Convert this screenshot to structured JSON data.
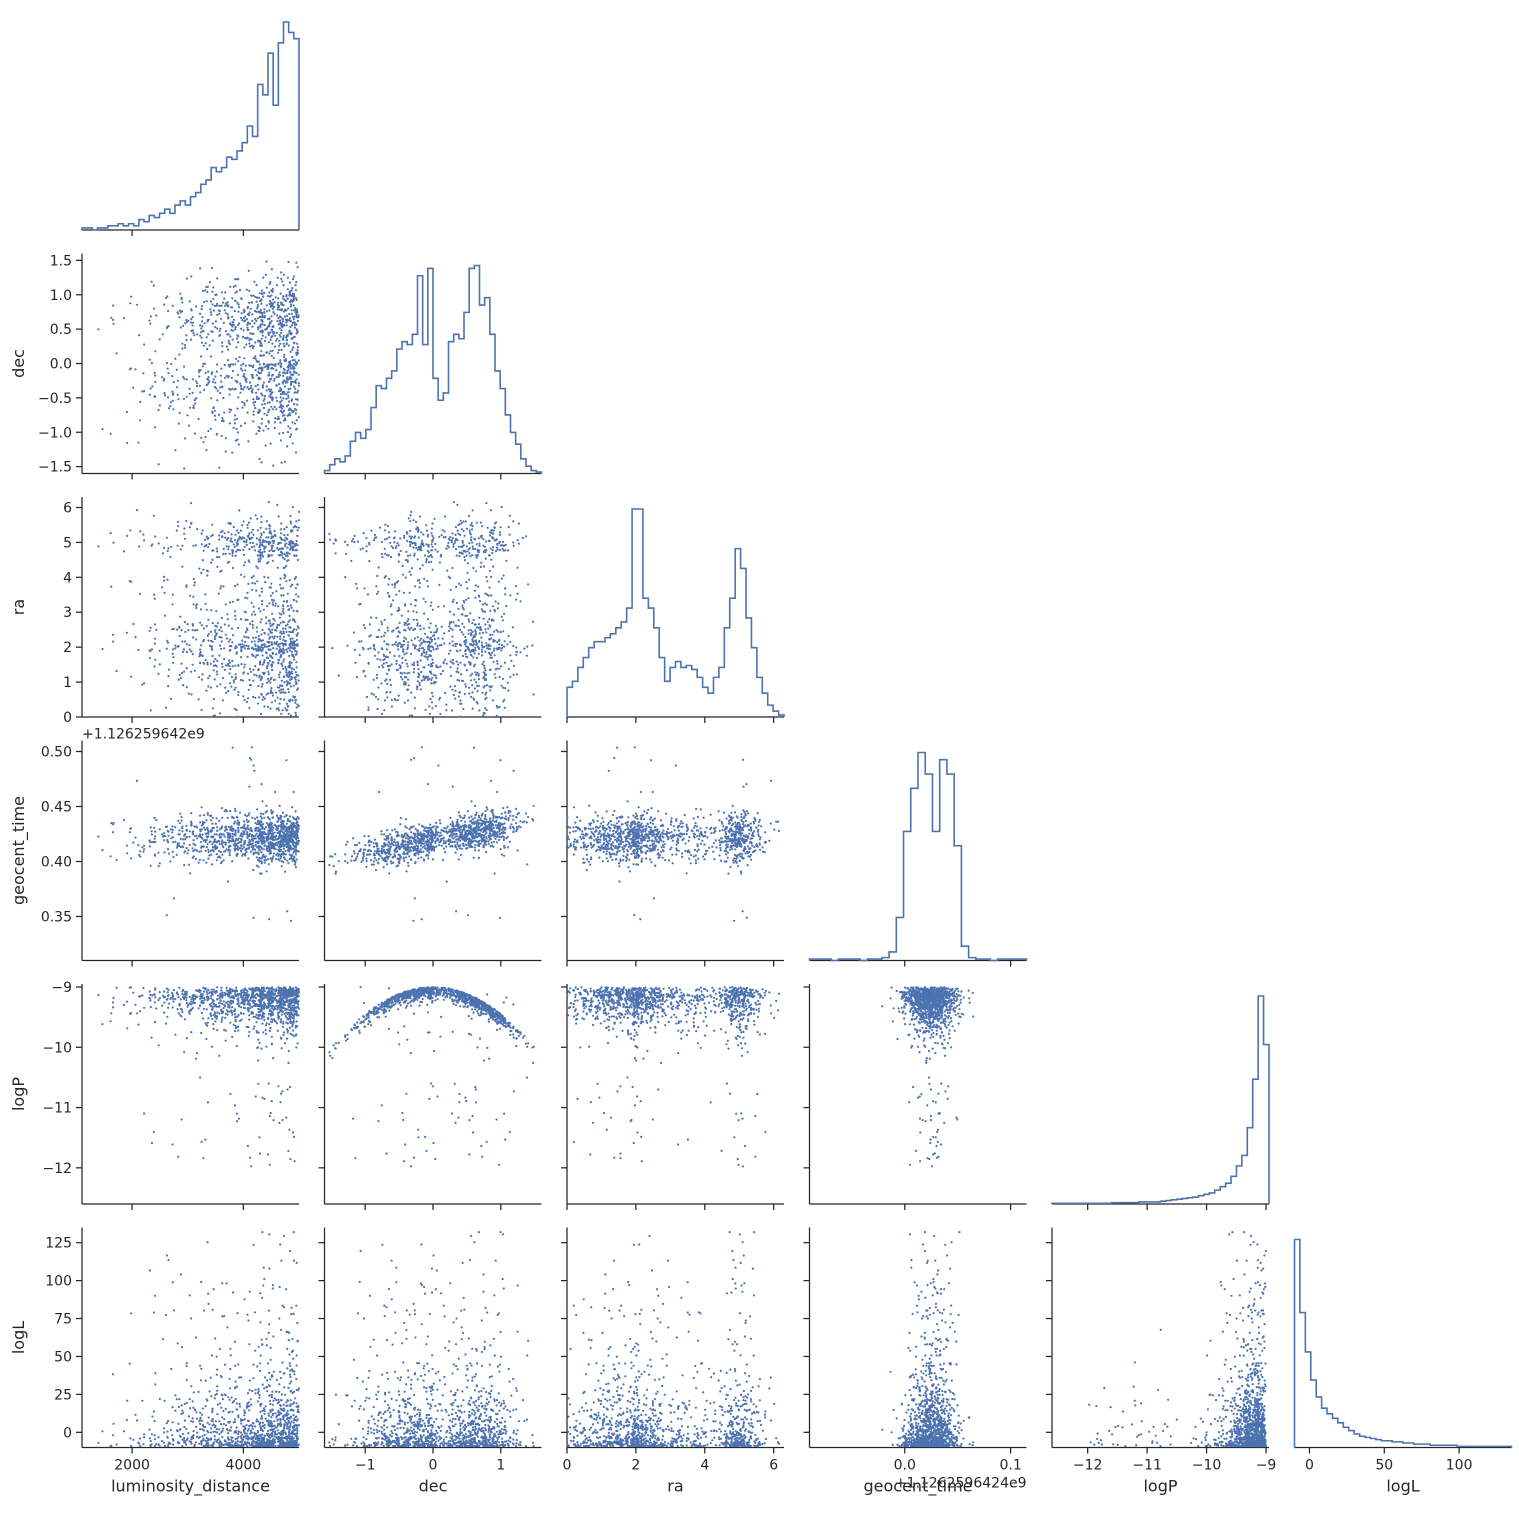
{
  "chart_data": {
    "type": "scatter",
    "layout": "corner-pairplot",
    "variables": [
      "luminosity_distance",
      "dec",
      "ra",
      "geocent_time",
      "logP",
      "logL"
    ],
    "axis_labels": [
      "luminosity_distance",
      "dec",
      "ra",
      "geocent_time",
      "logP",
      "logL"
    ],
    "marker_color": "#4c72b0",
    "grid": false,
    "geocent_time_offset_label": "+1.126259642e9",
    "geocent_time_x_offset_label": "+1.1262596424e9",
    "x_ticks": {
      "luminosity_distance": [
        "2000",
        "4000"
      ],
      "dec": [
        "−1",
        "0",
        "1"
      ],
      "ra": [
        "0",
        "2",
        "4",
        "6"
      ],
      "geocent_time": [
        "0.0",
        "0.1"
      ],
      "logP": [
        "−12",
        "−11",
        "−10",
        "−9"
      ],
      "logL": [
        "0",
        "50",
        "100"
      ]
    },
    "y_ticks": {
      "dec": [
        "1.5",
        "1.0",
        "0.5",
        "0.0",
        "−0.5",
        "−1.0",
        "−1.5"
      ],
      "ra": [
        "6",
        "5",
        "4",
        "3",
        "2",
        "1",
        "0"
      ],
      "geocent_time": [
        "0.50",
        "0.45",
        "0.40",
        "0.35"
      ],
      "logP": [
        "−9",
        "−10",
        "−11",
        "−12"
      ],
      "logL": [
        "125",
        "100",
        "75",
        "50",
        "25",
        "0"
      ]
    },
    "ranges": {
      "luminosity_distance": [
        1100,
        5000
      ],
      "dec": [
        -1.6,
        1.6
      ],
      "ra": [
        0,
        6.3
      ],
      "geocent_time": [
        0.31,
        0.51
      ],
      "logP": [
        -12.6,
        -8.95
      ],
      "logL": [
        -10,
        135
      ]
    },
    "geocent_time_x_range": [
      -0.09,
      0.115
    ],
    "histograms": {
      "luminosity_distance": {
        "bins": [
          1100,
          5000
        ],
        "counts": [
          1,
          1,
          0,
          1,
          1,
          2,
          2,
          3,
          2,
          3,
          2,
          5,
          4,
          7,
          6,
          8,
          10,
          8,
          12,
          14,
          12,
          16,
          18,
          22,
          24,
          30,
          28,
          30,
          35,
          34,
          38,
          42,
          50,
          45,
          70,
          65,
          85,
          60,
          90,
          100,
          95,
          92
        ]
      },
      "dec": {
        "bins": [
          -1.6,
          1.6
        ],
        "counts": [
          2,
          6,
          10,
          8,
          12,
          22,
          28,
          24,
          30,
          45,
          60,
          58,
          65,
          70,
          85,
          90,
          88,
          95,
          135,
          88,
          140,
          65,
          50,
          55,
          90,
          95,
          92,
          110,
          140,
          142,
          115,
          120,
          95,
          70,
          58,
          40,
          28,
          20,
          10,
          5,
          2,
          1
        ]
      },
      "ra": {
        "bins": [
          0,
          6.3
        ],
        "counts": [
          15,
          18,
          25,
          30,
          35,
          38,
          38,
          40,
          42,
          45,
          48,
          55,
          105,
          105,
          60,
          55,
          45,
          30,
          18,
          25,
          28,
          25,
          26,
          24,
          20,
          15,
          12,
          20,
          25,
          45,
          60,
          85,
          75,
          50,
          35,
          20,
          12,
          6,
          3,
          1
        ]
      },
      "geocent_time": {
        "bins": [
          -0.09,
          0.115
        ],
        "counts": [
          1,
          1,
          1,
          0,
          1,
          1,
          1,
          0,
          1,
          1,
          2,
          6,
          30,
          90,
          120,
          145,
          130,
          90,
          140,
          130,
          80,
          10,
          2,
          1,
          1,
          0,
          1,
          1,
          1,
          1
        ]
      },
      "logP": {
        "bins": [
          -12.6,
          -8.95
        ],
        "counts": [
          1,
          1,
          1,
          1,
          1,
          1,
          1,
          1,
          1,
          1,
          1,
          2,
          2,
          2,
          2,
          2,
          3,
          3,
          3,
          3,
          4,
          5,
          6,
          7,
          8,
          9,
          10,
          12,
          14,
          16,
          20,
          25,
          30,
          40,
          55,
          70,
          110,
          180,
          300,
          230
        ]
      },
      "logL": {
        "bins": [
          -10,
          135
        ],
        "counts": [
          185,
          120,
          85,
          60,
          45,
          35,
          30,
          26,
          22,
          18,
          15,
          12,
          10,
          9,
          8,
          7,
          6,
          6,
          5,
          5,
          4,
          4,
          3,
          3,
          3,
          2,
          2,
          2,
          2,
          2,
          1,
          1,
          1,
          1,
          1,
          1,
          1,
          1,
          1,
          1
        ]
      }
    },
    "scatter_points_per_panel": 1200,
    "random_seed": 12345
  }
}
